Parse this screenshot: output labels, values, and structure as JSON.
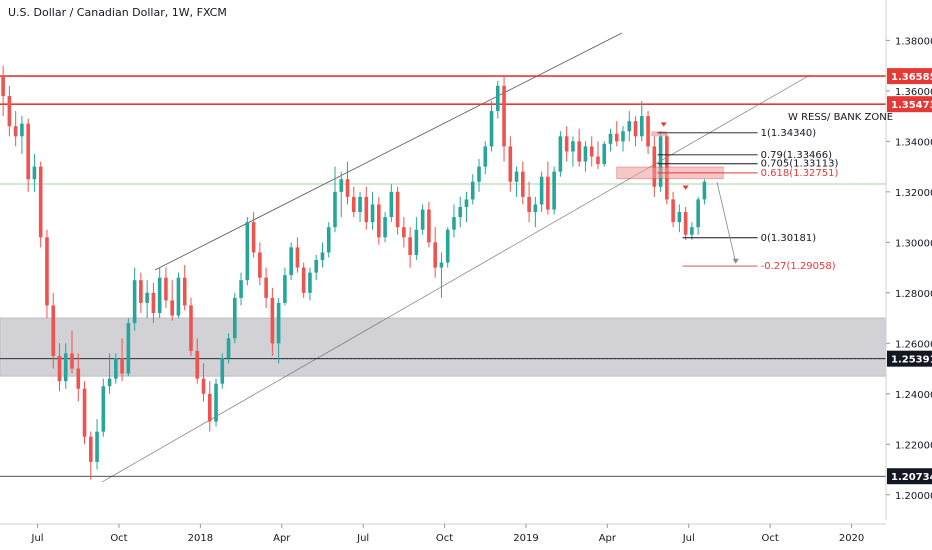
{
  "chart_data": {
    "type": "candlestick",
    "title": "U.S. Dollar / Canadian Dollar, 1W, FXCM",
    "ylim": [
      1.19,
      1.396
    ],
    "y_ticks": [
      1.2,
      1.22,
      1.24,
      1.26,
      1.28,
      1.3,
      1.32,
      1.34,
      1.36,
      1.38
    ],
    "y_tick_labels": [
      "1.20000",
      "1.22000",
      "1.24000",
      "1.26000",
      "1.28000",
      "1.30000",
      "1.32000",
      "1.34000",
      "1.36000",
      "1.38000"
    ],
    "x_ticks": [
      {
        "label": "Jul",
        "week": 6
      },
      {
        "label": "Oct",
        "week": 19
      },
      {
        "label": "2018",
        "week": 32
      },
      {
        "label": "Apr",
        "week": 45
      },
      {
        "label": "Jul",
        "week": 58
      },
      {
        "label": "Oct",
        "week": 71
      },
      {
        "label": "2019",
        "week": 84
      },
      {
        "label": "Apr",
        "week": 97
      },
      {
        "label": "Jul",
        "week": 110
      },
      {
        "label": "Oct",
        "week": 123
      },
      {
        "label": "2020",
        "week": 136
      }
    ],
    "x_range_weeks": [
      0,
      141.5
    ],
    "candles": [
      [
        1.366,
        1.37,
        1.35,
        1.358
      ],
      [
        1.358,
        1.362,
        1.342,
        1.346
      ],
      [
        1.346,
        1.352,
        1.338,
        1.342
      ],
      [
        1.342,
        1.35,
        1.335,
        1.347
      ],
      [
        1.347,
        1.349,
        1.32,
        1.325
      ],
      [
        1.325,
        1.335,
        1.32,
        1.33
      ],
      [
        1.33,
        1.332,
        1.298,
        1.302
      ],
      [
        1.302,
        1.305,
        1.27,
        1.275
      ],
      [
        1.275,
        1.28,
        1.25,
        1.255
      ],
      [
        1.255,
        1.26,
        1.241,
        1.245
      ],
      [
        1.245,
        1.26,
        1.242,
        1.256
      ],
      [
        1.256,
        1.265,
        1.248,
        1.25
      ],
      [
        1.25,
        1.256,
        1.237,
        1.242
      ],
      [
        1.242,
        1.245,
        1.22,
        1.223
      ],
      [
        1.223,
        1.225,
        1.206,
        1.213
      ],
      [
        1.213,
        1.23,
        1.21,
        1.225
      ],
      [
        1.225,
        1.246,
        1.223,
        1.243
      ],
      [
        1.243,
        1.256,
        1.24,
        1.246
      ],
      [
        1.246,
        1.256,
        1.244,
        1.254
      ],
      [
        1.254,
        1.262,
        1.245,
        1.248
      ],
      [
        1.248,
        1.27,
        1.247,
        1.268
      ],
      [
        1.268,
        1.29,
        1.265,
        1.285
      ],
      [
        1.285,
        1.288,
        1.272,
        1.276
      ],
      [
        1.276,
        1.285,
        1.27,
        1.28
      ],
      [
        1.28,
        1.284,
        1.268,
        1.272
      ],
      [
        1.272,
        1.29,
        1.27,
        1.286
      ],
      [
        1.286,
        1.29,
        1.274,
        1.277
      ],
      [
        1.277,
        1.285,
        1.269,
        1.271
      ],
      [
        1.271,
        1.288,
        1.27,
        1.286
      ],
      [
        1.286,
        1.291,
        1.273,
        1.275
      ],
      [
        1.275,
        1.278,
        1.255,
        1.257
      ],
      [
        1.257,
        1.262,
        1.244,
        1.246
      ],
      [
        1.246,
        1.252,
        1.237,
        1.24
      ],
      [
        1.24,
        1.245,
        1.225,
        1.229
      ],
      [
        1.229,
        1.246,
        1.227,
        1.244
      ],
      [
        1.244,
        1.256,
        1.242,
        1.254
      ],
      [
        1.254,
        1.264,
        1.252,
        1.262
      ],
      [
        1.262,
        1.28,
        1.26,
        1.278
      ],
      [
        1.278,
        1.288,
        1.275,
        1.285
      ],
      [
        1.285,
        1.31,
        1.283,
        1.308
      ],
      [
        1.308,
        1.312,
        1.294,
        1.296
      ],
      [
        1.296,
        1.3,
        1.283,
        1.286
      ],
      [
        1.286,
        1.29,
        1.274,
        1.278
      ],
      [
        1.278,
        1.282,
        1.255,
        1.26
      ],
      [
        1.26,
        1.278,
        1.252,
        1.276
      ],
      [
        1.276,
        1.29,
        1.275,
        1.287
      ],
      [
        1.287,
        1.3,
        1.285,
        1.298
      ],
      [
        1.298,
        1.302,
        1.288,
        1.29
      ],
      [
        1.29,
        1.292,
        1.278,
        1.28
      ],
      [
        1.28,
        1.29,
        1.277,
        1.288
      ],
      [
        1.288,
        1.295,
        1.285,
        1.293
      ],
      [
        1.293,
        1.3,
        1.29,
        1.296
      ],
      [
        1.296,
        1.308,
        1.294,
        1.306
      ],
      [
        1.306,
        1.33,
        1.304,
        1.32
      ],
      [
        1.32,
        1.328,
        1.31,
        1.325
      ],
      [
        1.325,
        1.332,
        1.315,
        1.318
      ],
      [
        1.318,
        1.322,
        1.31,
        1.312
      ],
      [
        1.312,
        1.32,
        1.308,
        1.318
      ],
      [
        1.318,
        1.322,
        1.305,
        1.308
      ],
      [
        1.308,
        1.32,
        1.305,
        1.315
      ],
      [
        1.315,
        1.318,
        1.299,
        1.302
      ],
      [
        1.302,
        1.312,
        1.3,
        1.31
      ],
      [
        1.31,
        1.323,
        1.308,
        1.32
      ],
      [
        1.32,
        1.322,
        1.303,
        1.306
      ],
      [
        1.306,
        1.31,
        1.298,
        1.302
      ],
      [
        1.302,
        1.306,
        1.29,
        1.295
      ],
      [
        1.295,
        1.31,
        1.293,
        1.305
      ],
      [
        1.305,
        1.315,
        1.303,
        1.313
      ],
      [
        1.313,
        1.316,
        1.298,
        1.3
      ],
      [
        1.3,
        1.306,
        1.286,
        1.29
      ],
      [
        1.29,
        1.296,
        1.278,
        1.292
      ],
      [
        1.292,
        1.306,
        1.29,
        1.305
      ],
      [
        1.305,
        1.315,
        1.302,
        1.31
      ],
      [
        1.31,
        1.318,
        1.306,
        1.314
      ],
      [
        1.314,
        1.32,
        1.308,
        1.317
      ],
      [
        1.317,
        1.327,
        1.315,
        1.324
      ],
      [
        1.324,
        1.333,
        1.32,
        1.33
      ],
      [
        1.33,
        1.34,
        1.327,
        1.338
      ],
      [
        1.338,
        1.356,
        1.336,
        1.352
      ],
      [
        1.352,
        1.364,
        1.349,
        1.362
      ],
      [
        1.362,
        1.366,
        1.332,
        1.338
      ],
      [
        1.338,
        1.342,
        1.32,
        1.324
      ],
      [
        1.324,
        1.33,
        1.318,
        1.328
      ],
      [
        1.328,
        1.332,
        1.315,
        1.318
      ],
      [
        1.318,
        1.324,
        1.308,
        1.312
      ],
      [
        1.312,
        1.318,
        1.306,
        1.315
      ],
      [
        1.315,
        1.328,
        1.312,
        1.326
      ],
      [
        1.326,
        1.332,
        1.311,
        1.313
      ],
      [
        1.313,
        1.33,
        1.311,
        1.328
      ],
      [
        1.328,
        1.344,
        1.326,
        1.342
      ],
      [
        1.342,
        1.346,
        1.332,
        1.336
      ],
      [
        1.336,
        1.342,
        1.33,
        1.34
      ],
      [
        1.34,
        1.345,
        1.33,
        1.332
      ],
      [
        1.332,
        1.34,
        1.328,
        1.338
      ],
      [
        1.338,
        1.342,
        1.33,
        1.334
      ],
      [
        1.334,
        1.34,
        1.329,
        1.331
      ],
      [
        1.331,
        1.34,
        1.33,
        1.339
      ],
      [
        1.339,
        1.345,
        1.336,
        1.343
      ],
      [
        1.343,
        1.348,
        1.338,
        1.34
      ],
      [
        1.34,
        1.346,
        1.336,
        1.344
      ],
      [
        1.344,
        1.352,
        1.34,
        1.348
      ],
      [
        1.348,
        1.35,
        1.338,
        1.342
      ],
      [
        1.342,
        1.356,
        1.34,
        1.35
      ],
      [
        1.35,
        1.352,
        1.335,
        1.338
      ],
      [
        1.338,
        1.342,
        1.318,
        1.322
      ],
      [
        1.322,
        1.344,
        1.32,
        1.342
      ],
      [
        1.342,
        1.343,
        1.315,
        1.317
      ],
      [
        1.317,
        1.32,
        1.306,
        1.308
      ],
      [
        1.308,
        1.315,
        1.304,
        1.312
      ],
      [
        1.312,
        1.314,
        1.301,
        1.303
      ],
      [
        1.303,
        1.308,
        1.301,
        1.306
      ],
      [
        1.306,
        1.318,
        1.303,
        1.317
      ],
      [
        1.317,
        1.325,
        1.315,
        1.324
      ]
    ],
    "horizontal_levels": [
      {
        "value": 1.36585,
        "label": "1.36585",
        "color": "#e53935"
      },
      {
        "value": 1.35473,
        "label": "1.35473",
        "color": "#e53935"
      },
      {
        "value": 1.25391,
        "label": "1.25391",
        "color": "#131722"
      },
      {
        "value": 1.20734,
        "label": "1.20734",
        "color": "#131722"
      }
    ],
    "zone_label": "W RESS/ BANK ZONE",
    "support_zone": [
      1.247,
      1.27
    ],
    "fib_levels": [
      {
        "label": "1(1.34340)",
        "value": 1.3434,
        "color": "#131722"
      },
      {
        "label": "0.79(1.33466)",
        "value": 1.33466,
        "color": "#131722"
      },
      {
        "label": "0.705(1.33113)",
        "value": 1.33113,
        "color": "#131722"
      },
      {
        "label": "0.618(1.32751)",
        "value": 1.32751,
        "color": "#e53935"
      },
      {
        "label": "0(1.30181)",
        "value": 1.30181,
        "color": "#131722"
      },
      {
        "label": "-0.27(1.29058)",
        "value": 1.29058,
        "color": "#e53935"
      }
    ],
    "colors": {
      "up": "#26a69a",
      "down": "#ef5350",
      "level": "#e53935",
      "zone": "#d1d1d6",
      "green_line": "#a5d6a7"
    }
  }
}
